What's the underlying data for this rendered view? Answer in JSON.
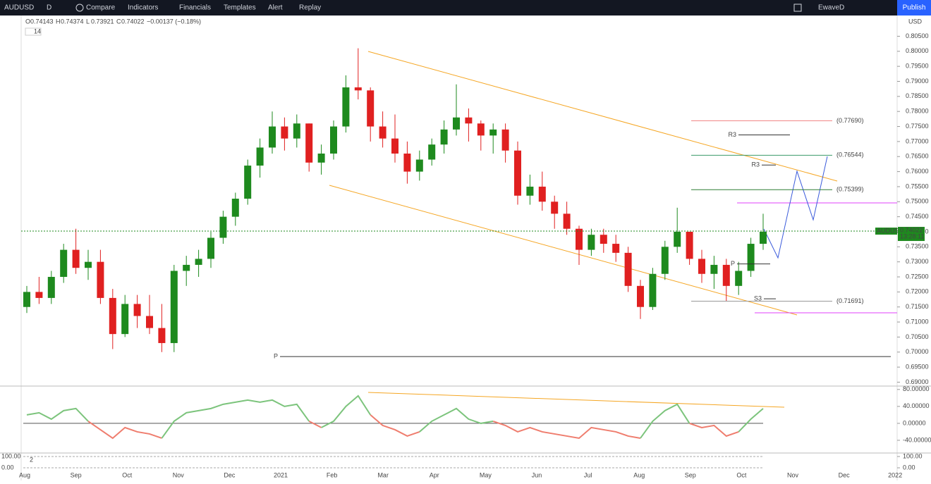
{
  "toolbar": {
    "symbol": "AUDUSD",
    "interval": "D",
    "buttons": [
      "Compare",
      "Indicators",
      "Financials",
      "Templates",
      "Alert",
      "Replay"
    ],
    "layout": "EwaveD",
    "publish": "Publish"
  },
  "chart_data": [
    {
      "type": "candlestick",
      "symbol": "AUDUSD",
      "currency": "USD",
      "length": "14",
      "header": [
        {
          "key": "O",
          "value": 0.74143
        },
        {
          "key": "H",
          "value": 0.74374
        },
        {
          "key": "L",
          "value": 0.73921
        },
        {
          "key": "C",
          "value": 0.74022
        }
      ],
      "change": "−0.00137 (−0.18%)",
      "x_labels": [
        "Aug",
        "Sep",
        "Oct",
        "Nov",
        "Dec",
        "2021",
        "Feb",
        "Mar",
        "Apr",
        "May",
        "Jun",
        "Jul",
        "Aug",
        "Sep",
        "Oct",
        "Nov",
        "Dec",
        "2022"
      ],
      "colors": {
        "up": "#1e8a1e",
        "down": "#e02020"
      },
      "candles": [
        [
          0.715,
          0.722,
          0.713,
          0.72
        ],
        [
          0.72,
          0.725,
          0.716,
          0.718
        ],
        [
          0.718,
          0.727,
          0.716,
          0.725
        ],
        [
          0.725,
          0.736,
          0.723,
          0.734
        ],
        [
          0.734,
          0.741,
          0.726,
          0.728
        ],
        [
          0.728,
          0.734,
          0.724,
          0.73
        ],
        [
          0.73,
          0.734,
          0.716,
          0.718
        ],
        [
          0.718,
          0.721,
          0.701,
          0.706
        ],
        [
          0.706,
          0.719,
          0.705,
          0.716
        ],
        [
          0.716,
          0.719,
          0.708,
          0.712
        ],
        [
          0.712,
          0.719,
          0.706,
          0.708
        ],
        [
          0.708,
          0.716,
          0.7,
          0.703
        ],
        [
          0.703,
          0.729,
          0.7,
          0.727
        ],
        [
          0.727,
          0.732,
          0.722,
          0.729
        ],
        [
          0.729,
          0.734,
          0.725,
          0.731
        ],
        [
          0.731,
          0.74,
          0.728,
          0.738
        ],
        [
          0.738,
          0.747,
          0.736,
          0.745
        ],
        [
          0.745,
          0.753,
          0.742,
          0.751
        ],
        [
          0.751,
          0.764,
          0.749,
          0.762
        ],
        [
          0.762,
          0.771,
          0.758,
          0.768
        ],
        [
          0.768,
          0.78,
          0.766,
          0.775
        ],
        [
          0.775,
          0.778,
          0.767,
          0.771
        ],
        [
          0.771,
          0.779,
          0.768,
          0.776
        ],
        [
          0.776,
          0.776,
          0.76,
          0.763
        ],
        [
          0.763,
          0.769,
          0.759,
          0.766
        ],
        [
          0.766,
          0.777,
          0.764,
          0.775
        ],
        [
          0.775,
          0.792,
          0.773,
          0.788
        ],
        [
          0.788,
          0.801,
          0.784,
          0.787
        ],
        [
          0.787,
          0.788,
          0.77,
          0.775
        ],
        [
          0.775,
          0.78,
          0.768,
          0.771
        ],
        [
          0.771,
          0.779,
          0.763,
          0.766
        ],
        [
          0.766,
          0.77,
          0.756,
          0.76
        ],
        [
          0.76,
          0.767,
          0.757,
          0.764
        ],
        [
          0.764,
          0.771,
          0.762,
          0.769
        ],
        [
          0.769,
          0.777,
          0.766,
          0.774
        ],
        [
          0.774,
          0.789,
          0.772,
          0.778
        ],
        [
          0.778,
          0.781,
          0.77,
          0.776
        ],
        [
          0.776,
          0.777,
          0.767,
          0.772
        ],
        [
          0.772,
          0.776,
          0.766,
          0.774
        ],
        [
          0.774,
          0.776,
          0.763,
          0.767
        ],
        [
          0.767,
          0.77,
          0.749,
          0.752
        ],
        [
          0.752,
          0.759,
          0.749,
          0.755
        ],
        [
          0.755,
          0.76,
          0.747,
          0.75
        ],
        [
          0.75,
          0.752,
          0.741,
          0.746
        ],
        [
          0.746,
          0.75,
          0.739,
          0.741
        ],
        [
          0.741,
          0.742,
          0.729,
          0.734
        ],
        [
          0.734,
          0.741,
          0.732,
          0.739
        ],
        [
          0.739,
          0.741,
          0.733,
          0.736
        ],
        [
          0.736,
          0.739,
          0.73,
          0.733
        ],
        [
          0.733,
          0.735,
          0.72,
          0.722
        ],
        [
          0.722,
          0.724,
          0.711,
          0.715
        ],
        [
          0.715,
          0.728,
          0.714,
          0.726
        ],
        [
          0.726,
          0.737,
          0.724,
          0.735
        ],
        [
          0.735,
          0.748,
          0.733,
          0.74
        ],
        [
          0.74,
          0.74,
          0.729,
          0.731
        ],
        [
          0.731,
          0.734,
          0.723,
          0.726
        ],
        [
          0.726,
          0.732,
          0.721,
          0.729
        ],
        [
          0.729,
          0.731,
          0.717,
          0.722
        ],
        [
          0.722,
          0.73,
          0.719,
          0.727
        ],
        [
          0.727,
          0.738,
          0.725,
          0.736
        ],
        [
          0.736,
          0.746,
          0.734,
          0.74
        ]
      ],
      "ylim": [
        0.6887,
        0.8119
      ],
      "yticks": [
        {
          "value": 0.805,
          "label": "0.80500"
        },
        {
          "value": 0.8,
          "label": "0.80000"
        },
        {
          "value": 0.795,
          "label": "0.79500"
        },
        {
          "value": 0.79,
          "label": "0.79000"
        },
        {
          "value": 0.785,
          "label": "0.78500"
        },
        {
          "value": 0.78,
          "label": "0.78000"
        },
        {
          "value": 0.775,
          "label": "0.77500"
        },
        {
          "value": 0.77,
          "label": "0.77000"
        },
        {
          "value": 0.765,
          "label": "0.76500"
        },
        {
          "value": 0.76,
          "label": "0.76000"
        },
        {
          "value": 0.755,
          "label": "0.75500"
        },
        {
          "value": 0.75,
          "label": "0.75000"
        },
        {
          "value": 0.745,
          "label": "0.74500"
        },
        {
          "value": 0.74,
          "label": "0.74000"
        },
        {
          "value": 0.735,
          "label": "0.73500"
        },
        {
          "value": 0.73,
          "label": "0.73000"
        },
        {
          "value": 0.725,
          "label": "0.72500"
        },
        {
          "value": 0.72,
          "label": "0.72000"
        },
        {
          "value": 0.715,
          "label": "0.71500"
        },
        {
          "value": 0.71,
          "label": "0.71000"
        },
        {
          "value": 0.705,
          "label": "0.70500"
        },
        {
          "value": 0.7,
          "label": "0.70000"
        },
        {
          "value": 0.695,
          "label": "0.69500"
        },
        {
          "value": 0.69,
          "label": "0.69000"
        }
      ],
      "last_price": {
        "value": 0.74022,
        "label": "0.74022",
        "countdown": "13:28:11"
      },
      "fib_levels": [
        {
          "value": 0.7769,
          "label": "(0.77690)",
          "color": "#f08080"
        },
        {
          "value": 0.76544,
          "label": "(0.76544)",
          "color": "#3a9a6a"
        },
        {
          "value": 0.75399,
          "label": "(0.75399)",
          "color": "#2e7d32"
        },
        {
          "value": 0.71691,
          "label": "(0.71691)",
          "color": "#999999"
        }
      ],
      "pivots": [
        {
          "value": 0.7722,
          "label": "R3"
        },
        {
          "value": 0.7622,
          "label": "R3"
        },
        {
          "value": 0.7177,
          "label": "S3"
        },
        {
          "value": 0.7293,
          "label": "P"
        },
        {
          "value": 0.6985,
          "label": "P"
        }
      ]
    },
    {
      "type": "line",
      "ylim": [
        -70,
        88
      ],
      "yticks": [
        {
          "value": 80,
          "label": "80.00000"
        },
        {
          "value": 40,
          "label": "40.00000"
        },
        {
          "value": 0,
          "label": "0.00000"
        },
        {
          "value": -40,
          "label": "-40.00000"
        }
      ],
      "colors": {
        "positive": "#7cc47c",
        "negative": "#ef7d6e"
      },
      "values": [
        20,
        25,
        10,
        30,
        35,
        5,
        -15,
        -35,
        -10,
        -20,
        -25,
        -35,
        5,
        25,
        30,
        35,
        45,
        50,
        55,
        50,
        55,
        40,
        45,
        5,
        -10,
        5,
        40,
        65,
        20,
        -5,
        -15,
        -30,
        -20,
        5,
        20,
        35,
        10,
        0,
        5,
        -5,
        -20,
        -10,
        -20,
        -25,
        -30,
        -35,
        -10,
        -15,
        -20,
        -30,
        -35,
        5,
        30,
        45,
        0,
        -10,
        -5,
        -30,
        -20,
        10,
        35
      ]
    },
    {
      "type": "line",
      "label": "2",
      "ylim": [
        -112,
        131
      ],
      "yticks": [
        {
          "value": 100,
          "label": "100.00"
        },
        {
          "value": 0,
          "label": "0.00"
        }
      ]
    }
  ]
}
